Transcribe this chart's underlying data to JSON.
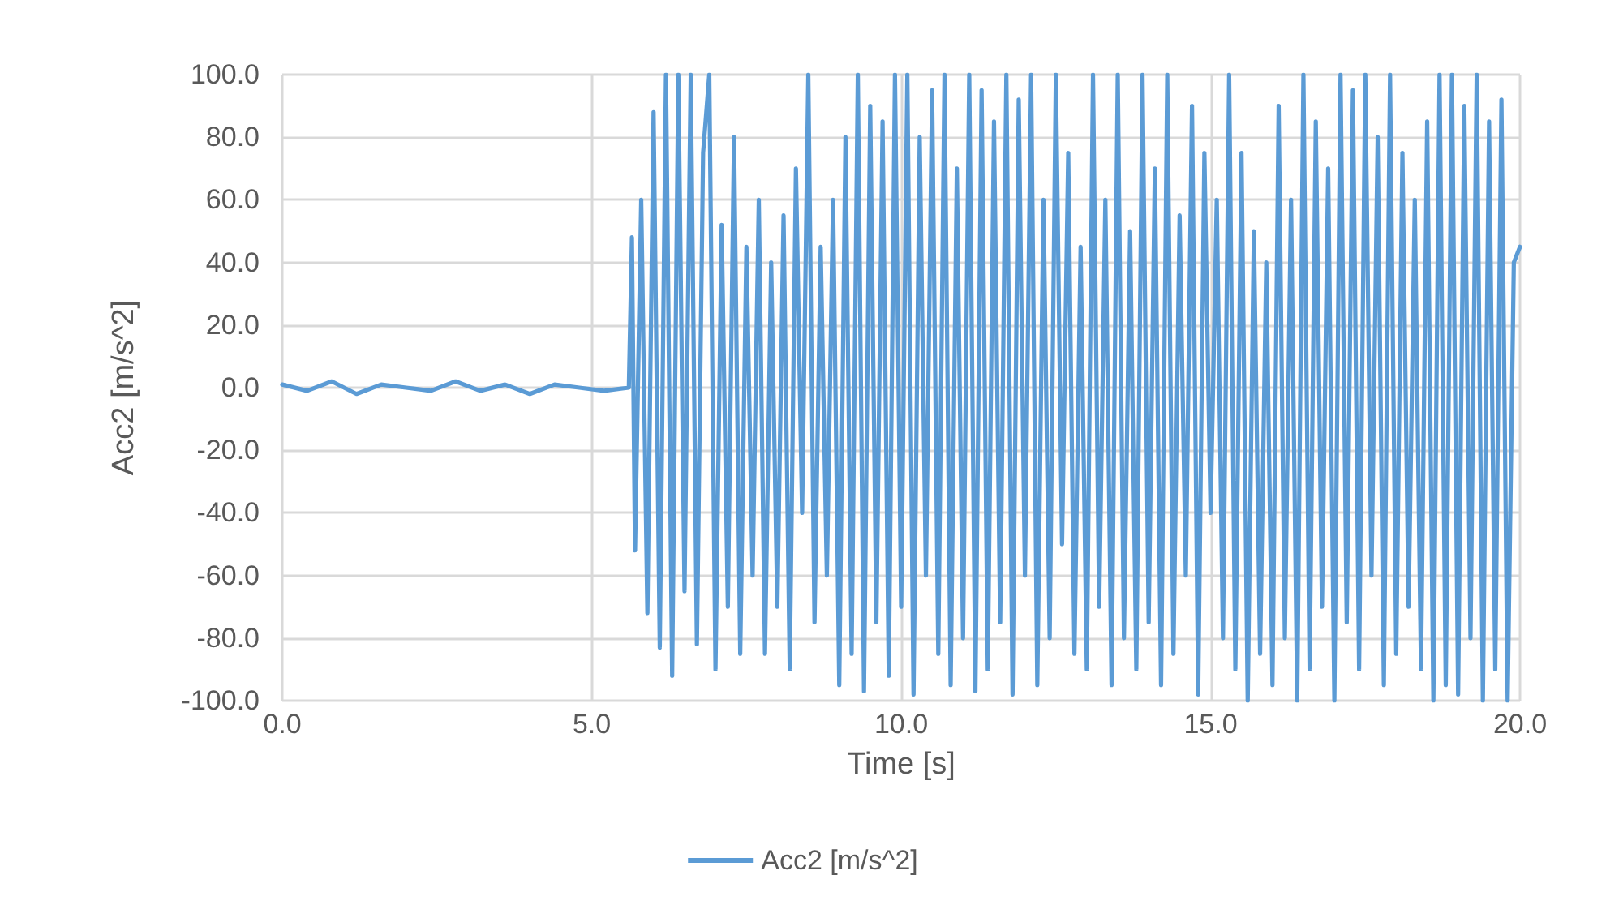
{
  "chart_data": {
    "type": "line",
    "xlabel": "Time [s]",
    "ylabel": "Acc2 [m/s^2]",
    "xlim": [
      0,
      20
    ],
    "xticks": [
      {
        "value": 0,
        "label": "0.0"
      },
      {
        "value": 5,
        "label": "5.0"
      },
      {
        "value": 10,
        "label": "10.0"
      },
      {
        "value": 15,
        "label": "15.0"
      },
      {
        "value": 20,
        "label": "20.0"
      }
    ],
    "ylim": [
      -100,
      100
    ],
    "yticks": [
      {
        "value": -100,
        "label": "-100.0"
      },
      {
        "value": -80,
        "label": "-80.0"
      },
      {
        "value": -60,
        "label": "-60.0"
      },
      {
        "value": -40,
        "label": "-40.0"
      },
      {
        "value": -20,
        "label": "-20.0"
      },
      {
        "value": 0,
        "label": "0.0"
      },
      {
        "value": 20,
        "label": "20.0"
      },
      {
        "value": 40,
        "label": "40.0"
      },
      {
        "value": 60,
        "label": "60.0"
      },
      {
        "value": 80,
        "label": "80.0"
      },
      {
        "value": 100,
        "label": "100.0"
      }
    ],
    "grid": true,
    "legend": "bottom",
    "marker": "none",
    "line_style": "solid",
    "series": [
      {
        "name": "Acc2 [m/s^2]",
        "color": "#5b9bd5",
        "x": [
          0,
          0.4,
          0.8,
          1.2,
          1.6,
          2.0,
          2.4,
          2.8,
          3.2,
          3.6,
          4.0,
          4.4,
          4.8,
          5.2,
          5.6,
          5.65,
          5.7,
          5.8,
          5.9,
          6.0,
          6.1,
          6.2,
          6.3,
          6.4,
          6.5,
          6.6,
          6.7,
          6.8,
          6.9,
          7.0,
          7.1,
          7.2,
          7.3,
          7.4,
          7.5,
          7.6,
          7.7,
          7.8,
          7.9,
          8.0,
          8.1,
          8.2,
          8.3,
          8.4,
          8.5,
          8.6,
          8.7,
          8.8,
          8.9,
          9.0,
          9.1,
          9.2,
          9.3,
          9.4,
          9.5,
          9.6,
          9.7,
          9.8,
          9.9,
          10.0,
          10.1,
          10.2,
          10.3,
          10.4,
          10.5,
          10.6,
          10.7,
          10.8,
          10.9,
          11.0,
          11.1,
          11.2,
          11.3,
          11.4,
          11.5,
          11.6,
          11.7,
          11.8,
          11.9,
          12.0,
          12.1,
          12.2,
          12.3,
          12.4,
          12.5,
          12.6,
          12.7,
          12.8,
          12.9,
          13.0,
          13.1,
          13.2,
          13.3,
          13.4,
          13.5,
          13.6,
          13.7,
          13.8,
          13.9,
          14.0,
          14.1,
          14.2,
          14.3,
          14.4,
          14.5,
          14.6,
          14.7,
          14.8,
          14.9,
          15.0,
          15.1,
          15.2,
          15.3,
          15.4,
          15.5,
          15.6,
          15.7,
          15.8,
          15.9,
          16.0,
          16.1,
          16.2,
          16.3,
          16.4,
          16.5,
          16.6,
          16.7,
          16.8,
          16.9,
          17.0,
          17.1,
          17.2,
          17.3,
          17.4,
          17.5,
          17.6,
          17.7,
          17.8,
          17.9,
          18.0,
          18.1,
          18.2,
          18.3,
          18.4,
          18.5,
          18.6,
          18.7,
          18.8,
          18.9,
          19.0,
          19.1,
          19.2,
          19.3,
          19.4,
          19.5,
          19.6,
          19.7,
          19.8,
          19.9,
          20.0
        ],
        "values": [
          1,
          -1,
          2,
          -2,
          1,
          0,
          -1,
          2,
          -1,
          1,
          -2,
          1,
          0,
          -1,
          0,
          48,
          -52,
          60,
          -72,
          88,
          -83,
          100,
          -92,
          100,
          -65,
          100,
          -82,
          75,
          100,
          -90,
          52,
          -70,
          80,
          -85,
          45,
          -60,
          60,
          -85,
          40,
          -70,
          55,
          -90,
          70,
          -40,
          100,
          -75,
          45,
          -60,
          60,
          -95,
          80,
          -85,
          100,
          -97,
          90,
          -75,
          85,
          -92,
          100,
          -70,
          100,
          -98,
          80,
          -60,
          95,
          -85,
          100,
          -95,
          70,
          -80,
          100,
          -97,
          95,
          -90,
          85,
          -75,
          100,
          -98,
          92,
          -60,
          100,
          -95,
          60,
          -80,
          100,
          -50,
          75,
          -85,
          45,
          -90,
          100,
          -70,
          60,
          -95,
          100,
          -80,
          50,
          -90,
          100,
          -75,
          70,
          -95,
          100,
          -85,
          55,
          -60,
          90,
          -98,
          75,
          -40,
          60,
          -80,
          100,
          -90,
          75,
          -100,
          50,
          -85,
          40,
          -95,
          90,
          -80,
          60,
          -100,
          100,
          -90,
          85,
          -70,
          70,
          -100,
          100,
          -75,
          95,
          -90,
          100,
          -60,
          80,
          -95,
          100,
          -85,
          75,
          -70,
          60,
          -90,
          85,
          -100,
          100,
          -95,
          100,
          -98,
          90,
          -80,
          100,
          -100,
          85,
          -90,
          92,
          -100,
          40,
          45
        ]
      }
    ]
  }
}
